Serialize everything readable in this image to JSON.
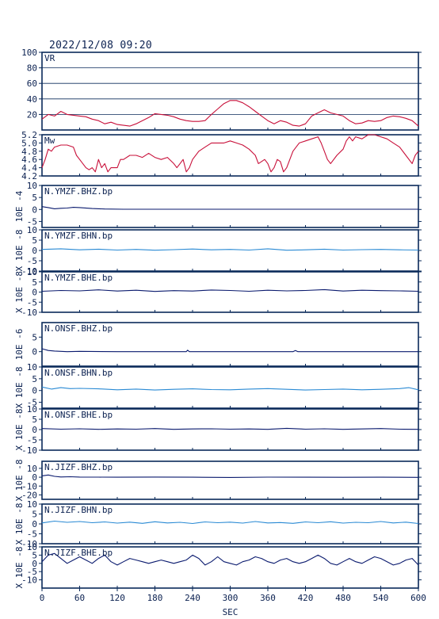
{
  "header": {
    "timestamp": "2022/12/08 09:20"
  },
  "colors": {
    "frame": "#0a2a5a",
    "vr": "#c8103a",
    "mw": "#c8103a",
    "dark": "#0a1a6e",
    "light": "#2a8ad4",
    "text": "#0a2050"
  },
  "chart_data": {
    "type": "line",
    "x_axis": {
      "label": "SEC",
      "range": [
        0,
        600
      ],
      "ticks": [
        "0",
        "60",
        "120",
        "180",
        "240",
        "300",
        "360",
        "420",
        "480",
        "540",
        "600"
      ]
    },
    "panels": [
      {
        "id": "vr",
        "label": "VR",
        "color": "vr",
        "ylim": [
          0,
          100
        ],
        "yticks": [
          "100",
          "80",
          "60",
          "40",
          "20"
        ],
        "yunit": "",
        "grid": true,
        "x": [
          0,
          10,
          20,
          30,
          40,
          50,
          60,
          70,
          80,
          90,
          100,
          110,
          120,
          130,
          140,
          150,
          160,
          170,
          180,
          190,
          200,
          210,
          220,
          230,
          240,
          250,
          260,
          270,
          280,
          290,
          300,
          310,
          320,
          330,
          340,
          350,
          360,
          370,
          380,
          390,
          400,
          410,
          420,
          430,
          440,
          450,
          460,
          470,
          480,
          490,
          500,
          510,
          520,
          530,
          540,
          550,
          560,
          570,
          580,
          590,
          600
        ],
        "y": [
          14,
          20,
          18,
          24,
          20,
          19,
          18,
          17,
          14,
          12,
          8,
          10,
          7,
          6,
          5,
          8,
          12,
          16,
          21,
          20,
          19,
          17,
          14,
          12,
          11,
          11,
          12,
          20,
          27,
          34,
          38,
          38,
          35,
          30,
          24,
          18,
          12,
          8,
          12,
          10,
          6,
          5,
          8,
          18,
          22,
          26,
          22,
          20,
          18,
          12,
          8,
          9,
          12,
          11,
          12,
          16,
          18,
          17,
          15,
          12,
          5
        ]
      },
      {
        "id": "mw",
        "label": "Mw",
        "color": "mw",
        "ylim": [
          4.2,
          5.2
        ],
        "yticks": [
          "5.2",
          "5.0",
          "4.8",
          "4.6",
          "4.4",
          "4.2"
        ],
        "yunit": "",
        "grid": false,
        "x": [
          0,
          5,
          10,
          15,
          20,
          30,
          40,
          50,
          55,
          60,
          65,
          70,
          75,
          80,
          85,
          90,
          95,
          100,
          105,
          110,
          120,
          125,
          130,
          140,
          150,
          160,
          170,
          180,
          190,
          200,
          210,
          215,
          220,
          225,
          230,
          235,
          240,
          250,
          260,
          270,
          280,
          290,
          300,
          310,
          320,
          330,
          340,
          345,
          350,
          355,
          360,
          365,
          370,
          375,
          380,
          385,
          390,
          400,
          410,
          420,
          430,
          440,
          445,
          450,
          455,
          460,
          470,
          480,
          485,
          490,
          495,
          500,
          510,
          520,
          530,
          540,
          550,
          560,
          570,
          580,
          590,
          595,
          600
        ],
        "y": [
          4.4,
          4.6,
          4.85,
          4.8,
          4.9,
          4.95,
          4.95,
          4.9,
          4.7,
          4.6,
          4.5,
          4.4,
          4.35,
          4.4,
          4.3,
          4.6,
          4.4,
          4.5,
          4.3,
          4.4,
          4.4,
          4.6,
          4.6,
          4.7,
          4.7,
          4.65,
          4.75,
          4.65,
          4.6,
          4.65,
          4.5,
          4.4,
          4.5,
          4.6,
          4.3,
          4.4,
          4.6,
          4.8,
          4.9,
          5.0,
          5.0,
          5.0,
          5.05,
          5.0,
          4.95,
          4.85,
          4.7,
          4.5,
          4.55,
          4.6,
          4.5,
          4.3,
          4.4,
          4.6,
          4.55,
          4.3,
          4.4,
          4.8,
          5.0,
          5.05,
          5.1,
          5.15,
          5.0,
          4.8,
          4.6,
          4.5,
          4.7,
          4.85,
          5.05,
          5.15,
          5.05,
          5.15,
          5.1,
          5.2,
          5.2,
          5.15,
          5.1,
          5.0,
          4.9,
          4.7,
          4.5,
          4.7,
          4.8
        ]
      },
      {
        "id": "ymzf-bhz",
        "label": "N.YMZF.BHZ.bp",
        "color": "dark",
        "yunit": "10E -4",
        "ylim": [
          -7.5,
          10
        ],
        "yticks": [
          "10",
          "5",
          "0",
          "-5"
        ],
        "grid": false,
        "x": [
          0,
          10,
          20,
          30,
          40,
          50,
          60,
          80,
          100,
          130,
          600
        ],
        "y": [
          1.2,
          0.8,
          0.3,
          0.5,
          0.6,
          0.9,
          0.8,
          0.4,
          0.2,
          0.1,
          0.1
        ]
      },
      {
        "id": "ymzf-bhn",
        "label": "N.YMZF.BHN.bp",
        "color": "light",
        "yunit": "X 10E -8",
        "ylim": [
          -10,
          10
        ],
        "yticks": [
          "10",
          "5",
          "0",
          "-5",
          "-10"
        ],
        "grid": false,
        "x": [
          0,
          30,
          60,
          90,
          120,
          150,
          180,
          210,
          240,
          270,
          300,
          330,
          360,
          390,
          420,
          450,
          480,
          510,
          540,
          570,
          600
        ],
        "y": [
          0.5,
          0.8,
          0.3,
          0.6,
          0.2,
          0.5,
          0.1,
          0.4,
          0.7,
          0.3,
          0.5,
          0.2,
          0.8,
          0.1,
          0.3,
          0.6,
          0.2,
          0.4,
          0.5,
          0.3,
          0.2
        ]
      },
      {
        "id": "ymzf-bhe",
        "label": "N.YMZF.BHE.bp",
        "color": "dark",
        "yunit": "X 10E -8",
        "ylim": [
          -10,
          10
        ],
        "yticks": [
          "10",
          "5",
          "0",
          "-5",
          "-10"
        ],
        "grid": false,
        "x": [
          0,
          30,
          60,
          90,
          120,
          150,
          180,
          210,
          240,
          270,
          300,
          330,
          360,
          390,
          420,
          450,
          480,
          510,
          540,
          570,
          600
        ],
        "y": [
          0.4,
          0.8,
          0.6,
          1.1,
          0.5,
          0.9,
          0.3,
          0.7,
          0.5,
          1.0,
          0.8,
          0.4,
          0.9,
          0.6,
          0.8,
          1.2,
          0.5,
          0.9,
          0.7,
          0.6,
          0.4
        ]
      },
      {
        "id": "onsf-bhz",
        "label": "N.ONSF.BHZ.bp",
        "color": "dark",
        "yunit": "10E -6",
        "ylim": [
          -5,
          10
        ],
        "yticks": [
          "5",
          "0"
        ],
        "grid": false,
        "x": [
          0,
          10,
          20,
          40,
          60,
          120,
          230,
          232,
          235,
          400,
          404,
          408,
          600
        ],
        "y": [
          1.0,
          0.4,
          0.2,
          0.0,
          0.1,
          0.0,
          0.0,
          0.5,
          0.0,
          0.0,
          0.4,
          0.0,
          0.0
        ]
      },
      {
        "id": "onsf-bhn",
        "label": "N.ONSF.BHN.bp",
        "color": "light",
        "yunit": "X 10E -8",
        "ylim": [
          -7.5,
          10
        ],
        "yticks": [
          "10",
          "5",
          "0",
          "-5"
        ],
        "grid": false,
        "x": [
          0,
          15,
          30,
          45,
          60,
          90,
          120,
          150,
          180,
          210,
          240,
          270,
          300,
          330,
          360,
          390,
          420,
          450,
          480,
          510,
          540,
          570,
          585,
          600
        ],
        "y": [
          1.5,
          0.6,
          1.2,
          0.8,
          0.9,
          0.7,
          0.3,
          0.6,
          0.2,
          0.5,
          0.7,
          0.4,
          0.3,
          0.6,
          0.8,
          0.5,
          0.2,
          0.4,
          0.6,
          0.3,
          0.5,
          0.8,
          1.2,
          0.3
        ]
      },
      {
        "id": "onsf-bhe",
        "label": "N.ONSF.BHE.bp",
        "color": "dark",
        "yunit": "X 10E -8",
        "ylim": [
          -10,
          10
        ],
        "yticks": [
          "10",
          "5",
          "0",
          "-5",
          "-10"
        ],
        "grid": false,
        "x": [
          0,
          30,
          60,
          90,
          120,
          150,
          180,
          210,
          240,
          270,
          300,
          330,
          360,
          390,
          420,
          450,
          480,
          510,
          540,
          570,
          600
        ],
        "y": [
          0.5,
          0.2,
          0.4,
          0.1,
          0.3,
          0.2,
          0.5,
          0.1,
          0.3,
          0.4,
          0.2,
          0.3,
          0.1,
          0.6,
          0.2,
          0.4,
          0.1,
          0.3,
          0.5,
          0.2,
          0.1
        ]
      },
      {
        "id": "jizf-bhz",
        "label": "N.JIZF.BHZ.bp",
        "color": "dark",
        "yunit": "X 10E -8",
        "ylim": [
          -25,
          18
        ],
        "yticks": [
          "10",
          "0",
          "-10",
          "-20"
        ],
        "grid": false,
        "x": [
          0,
          10,
          20,
          30,
          45,
          60,
          90,
          120,
          180,
          240,
          300,
          360,
          420,
          480,
          540,
          600
        ],
        "y": [
          1.5,
          2.5,
          1.0,
          0.3,
          0.5,
          0.2,
          0.1,
          0.0,
          0.2,
          0.0,
          -0.3,
          0.1,
          0.0,
          -0.1,
          0.0,
          -0.2
        ]
      },
      {
        "id": "jizf-bhn",
        "label": "N.JIZF.BHN.bp",
        "color": "light",
        "yunit": "X 10E -8",
        "ylim": [
          -10,
          10
        ],
        "yticks": [
          "10",
          "5",
          "0",
          "-5",
          "-10"
        ],
        "grid": false,
        "x": [
          0,
          20,
          40,
          60,
          80,
          100,
          120,
          140,
          160,
          180,
          200,
          220,
          240,
          260,
          280,
          300,
          320,
          340,
          360,
          380,
          400,
          420,
          440,
          460,
          480,
          500,
          520,
          540,
          560,
          580,
          600
        ],
        "y": [
          0.5,
          1.4,
          0.8,
          1.2,
          0.6,
          1.0,
          0.4,
          0.9,
          0.3,
          1.1,
          0.5,
          0.8,
          0.2,
          1.0,
          0.6,
          0.9,
          0.4,
          1.2,
          0.5,
          0.7,
          0.3,
          1.0,
          0.6,
          1.1,
          0.4,
          0.8,
          0.6,
          1.2,
          0.5,
          0.9,
          0.2
        ]
      },
      {
        "id": "jizf-bhe",
        "label": "N.JIZF.BHE.bp",
        "color": "dark",
        "yunit": "X 10E -8",
        "ylim": [
          -15,
          10
        ],
        "yticks": [
          "10",
          "5",
          "0",
          "-5",
          "-10"
        ],
        "grid": false,
        "x": [
          0,
          10,
          20,
          30,
          40,
          50,
          60,
          70,
          80,
          90,
          100,
          110,
          120,
          130,
          140,
          150,
          160,
          170,
          180,
          190,
          200,
          210,
          220,
          230,
          240,
          250,
          260,
          270,
          280,
          290,
          300,
          310,
          320,
          330,
          340,
          350,
          360,
          370,
          380,
          390,
          400,
          410,
          420,
          430,
          440,
          450,
          460,
          470,
          480,
          490,
          500,
          510,
          520,
          530,
          540,
          550,
          560,
          570,
          580,
          590,
          600
        ],
        "y": [
          1,
          5,
          6,
          3,
          0,
          2,
          4,
          2,
          0,
          3,
          5,
          1,
          -1,
          1,
          3,
          2,
          1,
          0,
          1,
          2,
          1,
          0,
          1,
          2,
          5,
          3,
          -1,
          1,
          4,
          1,
          0,
          -1,
          1,
          2,
          4,
          3,
          1,
          0,
          2,
          3,
          1,
          0,
          1,
          3,
          5,
          3,
          0,
          -1,
          1,
          3,
          1,
          0,
          2,
          4,
          3,
          1,
          -1,
          0,
          2,
          3,
          -1
        ]
      }
    ]
  }
}
